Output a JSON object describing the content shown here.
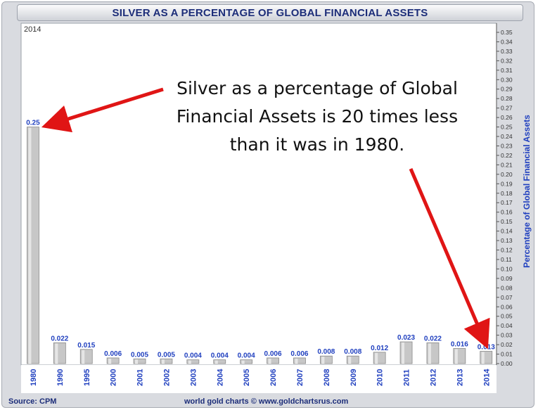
{
  "title": "SILVER AS A PERCENTAGE OF GLOBAL FINANCIAL ASSETS",
  "corner_label": "2014",
  "annotation_lines": [
    "Silver as a percentage of Global",
    "Financial Assets is 20 times less",
    "than it was in 1980."
  ],
  "footer": {
    "source": "Source: CPM",
    "credit": "world gold charts © www.goldchartsrus.com"
  },
  "colors": {
    "title": "#1c2d79",
    "value_label": "#1f3fbf",
    "bar": "#c7c7c7",
    "arrow": "#e01515"
  },
  "chart_data": {
    "type": "bar",
    "title": "SILVER AS A PERCENTAGE OF GLOBAL FINANCIAL ASSETS",
    "ylabel": "Percentage of Global Financial Assets",
    "categories": [
      "1980",
      "1990",
      "1995",
      "2000",
      "2001",
      "2002",
      "2003",
      "2004",
      "2005",
      "2006",
      "2007",
      "2008",
      "2009",
      "2010",
      "2011",
      "2012",
      "2013",
      "2014"
    ],
    "values": [
      0.25,
      0.022,
      0.015,
      0.006,
      0.005,
      0.005,
      0.004,
      0.004,
      0.004,
      0.006,
      0.006,
      0.008,
      0.008,
      0.012,
      0.023,
      0.022,
      0.016,
      0.013
    ],
    "value_labels": [
      "0.25",
      "0.022",
      "0.015",
      "0.006",
      "0.005",
      "0.005",
      "0.004",
      "0.004",
      "0.004",
      "0.006",
      "0.006",
      "0.008",
      "0.008",
      "0.012",
      "0.023",
      "0.022",
      "0.016",
      "0.013"
    ],
    "ylim": [
      0,
      0.35
    ],
    "y_ticks": [
      "0.00",
      "0.01",
      "0.02",
      "0.03",
      "0.04",
      "0.05",
      "0.06",
      "0.07",
      "0.08",
      "0.09",
      "0.10",
      "0.11",
      "0.12",
      "0.13",
      "0.14",
      "0.15",
      "0.16",
      "0.17",
      "0.18",
      "0.19",
      "0.20",
      "0.21",
      "0.22",
      "0.23",
      "0.24",
      "0.25",
      "0.26",
      "0.27",
      "0.28",
      "0.29",
      "0.30",
      "0.31",
      "0.32",
      "0.33",
      "0.34",
      "0.35"
    ],
    "y_axis_position": "right",
    "grid": false
  }
}
